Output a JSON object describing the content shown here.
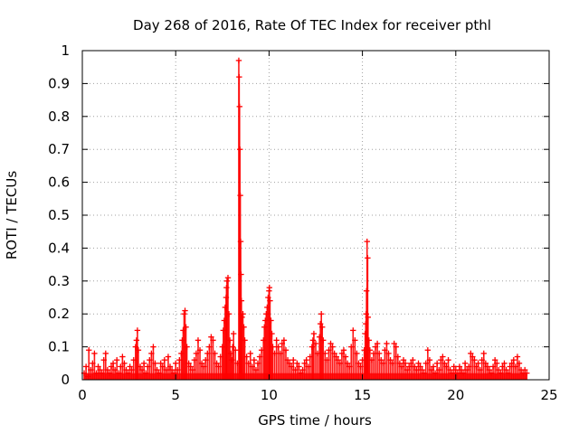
{
  "chart_data": {
    "type": "scatter",
    "title": "Day 268 of 2016, Rate Of TEC Index for receiver pthl",
    "xlabel": "GPS time / hours",
    "ylabel": "ROTI / TECUs",
    "xlim": [
      0,
      25
    ],
    "ylim": [
      0,
      1
    ],
    "x_ticks": [
      "0",
      "5",
      "10",
      "15",
      "20",
      "25"
    ],
    "y_ticks": [
      "0",
      "0.1",
      "0.2",
      "0.3",
      "0.4",
      "0.5",
      "0.6",
      "0.7",
      "0.8",
      "0.9",
      "1"
    ],
    "grid": true,
    "marker": "+",
    "color": "#ff0000",
    "series": [
      {
        "name": "ROTI",
        "points": [
          [
            0.1,
            0.02
          ],
          [
            0.2,
            0.04
          ],
          [
            0.3,
            0.01
          ],
          [
            0.35,
            0.09
          ],
          [
            0.45,
            0.03
          ],
          [
            0.55,
            0.05
          ],
          [
            0.65,
            0.08
          ],
          [
            0.75,
            0.02
          ],
          [
            0.85,
            0.04
          ],
          [
            0.95,
            0.03
          ],
          [
            1.05,
            0.02
          ],
          [
            1.15,
            0.06
          ],
          [
            1.25,
            0.08
          ],
          [
            1.35,
            0.03
          ],
          [
            1.45,
            0.02
          ],
          [
            1.55,
            0.04
          ],
          [
            1.65,
            0.05
          ],
          [
            1.75,
            0.03
          ],
          [
            1.85,
            0.06
          ],
          [
            1.95,
            0.02
          ],
          [
            2.05,
            0.04
          ],
          [
            2.15,
            0.07
          ],
          [
            2.25,
            0.05
          ],
          [
            2.35,
            0.03
          ],
          [
            2.45,
            0.02
          ],
          [
            2.55,
            0.04
          ],
          [
            2.65,
            0.03
          ],
          [
            2.75,
            0.06
          ],
          [
            2.85,
            0.1
          ],
          [
            2.9,
            0.12
          ],
          [
            2.95,
            0.15
          ],
          [
            3.0,
            0.09
          ],
          [
            3.1,
            0.04
          ],
          [
            3.2,
            0.03
          ],
          [
            3.3,
            0.05
          ],
          [
            3.4,
            0.02
          ],
          [
            3.5,
            0.04
          ],
          [
            3.6,
            0.06
          ],
          [
            3.7,
            0.08
          ],
          [
            3.8,
            0.1
          ],
          [
            3.9,
            0.05
          ],
          [
            4.0,
            0.03
          ],
          [
            4.1,
            0.02
          ],
          [
            4.2,
            0.05
          ],
          [
            4.3,
            0.04
          ],
          [
            4.4,
            0.06
          ],
          [
            4.5,
            0.03
          ],
          [
            4.6,
            0.07
          ],
          [
            4.7,
            0.04
          ],
          [
            4.8,
            0.03
          ],
          [
            4.9,
            0.02
          ],
          [
            5.0,
            0.05
          ],
          [
            5.1,
            0.03
          ],
          [
            5.2,
            0.06
          ],
          [
            5.3,
            0.08
          ],
          [
            5.35,
            0.12
          ],
          [
            5.4,
            0.15
          ],
          [
            5.45,
            0.2
          ],
          [
            5.5,
            0.21
          ],
          [
            5.55,
            0.16
          ],
          [
            5.6,
            0.1
          ],
          [
            5.7,
            0.05
          ],
          [
            5.8,
            0.04
          ],
          [
            5.9,
            0.03
          ],
          [
            6.0,
            0.06
          ],
          [
            6.1,
            0.08
          ],
          [
            6.2,
            0.12
          ],
          [
            6.3,
            0.09
          ],
          [
            6.4,
            0.05
          ],
          [
            6.5,
            0.04
          ],
          [
            6.6,
            0.06
          ],
          [
            6.7,
            0.08
          ],
          [
            6.8,
            0.1
          ],
          [
            6.9,
            0.13
          ],
          [
            7.0,
            0.12
          ],
          [
            7.1,
            0.08
          ],
          [
            7.2,
            0.05
          ],
          [
            7.3,
            0.04
          ],
          [
            7.4,
            0.07
          ],
          [
            7.5,
            0.1
          ],
          [
            7.55,
            0.15
          ],
          [
            7.6,
            0.18
          ],
          [
            7.65,
            0.22
          ],
          [
            7.7,
            0.25
          ],
          [
            7.72,
            0.28
          ],
          [
            7.75,
            0.3
          ],
          [
            7.8,
            0.31
          ],
          [
            7.85,
            0.2
          ],
          [
            7.9,
            0.12
          ],
          [
            7.95,
            0.08
          ],
          [
            8.0,
            0.06
          ],
          [
            8.05,
            0.1
          ],
          [
            8.1,
            0.14
          ],
          [
            8.2,
            0.09
          ],
          [
            8.3,
            0.05
          ],
          [
            8.38,
            0.97
          ],
          [
            8.4,
            0.92
          ],
          [
            8.42,
            0.83
          ],
          [
            8.44,
            0.7
          ],
          [
            8.46,
            0.56
          ],
          [
            8.48,
            0.42
          ],
          [
            8.5,
            0.32
          ],
          [
            8.52,
            0.24
          ],
          [
            8.55,
            0.19
          ],
          [
            8.6,
            0.2
          ],
          [
            8.65,
            0.16
          ],
          [
            8.7,
            0.12
          ],
          [
            8.8,
            0.07
          ],
          [
            8.9,
            0.05
          ],
          [
            9.0,
            0.08
          ],
          [
            9.1,
            0.04
          ],
          [
            9.2,
            0.06
          ],
          [
            9.3,
            0.03
          ],
          [
            9.4,
            0.05
          ],
          [
            9.5,
            0.07
          ],
          [
            9.6,
            0.09
          ],
          [
            9.7,
            0.12
          ],
          [
            9.75,
            0.16
          ],
          [
            9.8,
            0.18
          ],
          [
            9.85,
            0.2
          ],
          [
            9.9,
            0.22
          ],
          [
            9.95,
            0.25
          ],
          [
            10.0,
            0.27
          ],
          [
            10.02,
            0.28
          ],
          [
            10.05,
            0.24
          ],
          [
            10.1,
            0.18
          ],
          [
            10.15,
            0.14
          ],
          [
            10.2,
            0.1
          ],
          [
            10.3,
            0.08
          ],
          [
            10.4,
            0.12
          ],
          [
            10.5,
            0.1
          ],
          [
            10.6,
            0.08
          ],
          [
            10.7,
            0.11
          ],
          [
            10.8,
            0.12
          ],
          [
            10.9,
            0.09
          ],
          [
            11.0,
            0.06
          ],
          [
            11.1,
            0.05
          ],
          [
            11.2,
            0.04
          ],
          [
            11.3,
            0.06
          ],
          [
            11.4,
            0.03
          ],
          [
            11.5,
            0.05
          ],
          [
            11.6,
            0.04
          ],
          [
            11.7,
            0.02
          ],
          [
            11.8,
            0.03
          ],
          [
            11.9,
            0.05
          ],
          [
            12.0,
            0.06
          ],
          [
            12.1,
            0.04
          ],
          [
            12.2,
            0.07
          ],
          [
            12.3,
            0.1
          ],
          [
            12.35,
            0.12
          ],
          [
            12.4,
            0.14
          ],
          [
            12.5,
            0.11
          ],
          [
            12.6,
            0.08
          ],
          [
            12.7,
            0.13
          ],
          [
            12.75,
            0.17
          ],
          [
            12.8,
            0.2
          ],
          [
            12.85,
            0.16
          ],
          [
            12.9,
            0.12
          ],
          [
            13.0,
            0.08
          ],
          [
            13.1,
            0.06
          ],
          [
            13.2,
            0.09
          ],
          [
            13.3,
            0.11
          ],
          [
            13.4,
            0.1
          ],
          [
            13.5,
            0.08
          ],
          [
            13.6,
            0.07
          ],
          [
            13.7,
            0.06
          ],
          [
            13.8,
            0.05
          ],
          [
            13.9,
            0.08
          ],
          [
            14.0,
            0.09
          ],
          [
            14.1,
            0.07
          ],
          [
            14.2,
            0.05
          ],
          [
            14.3,
            0.04
          ],
          [
            14.4,
            0.1
          ],
          [
            14.5,
            0.15
          ],
          [
            14.6,
            0.12
          ],
          [
            14.7,
            0.08
          ],
          [
            14.8,
            0.05
          ],
          [
            14.9,
            0.04
          ],
          [
            15.0,
            0.06
          ],
          [
            15.1,
            0.09
          ],
          [
            15.15,
            0.14
          ],
          [
            15.18,
            0.17
          ],
          [
            15.2,
            0.2
          ],
          [
            15.22,
            0.27
          ],
          [
            15.25,
            0.42
          ],
          [
            15.28,
            0.37
          ],
          [
            15.3,
            0.19
          ],
          [
            15.35,
            0.12
          ],
          [
            15.4,
            0.09
          ],
          [
            15.5,
            0.06
          ],
          [
            15.6,
            0.08
          ],
          [
            15.7,
            0.1
          ],
          [
            15.8,
            0.11
          ],
          [
            15.9,
            0.08
          ],
          [
            16.0,
            0.06
          ],
          [
            16.1,
            0.05
          ],
          [
            16.2,
            0.09
          ],
          [
            16.3,
            0.11
          ],
          [
            16.4,
            0.08
          ],
          [
            16.5,
            0.06
          ],
          [
            16.6,
            0.05
          ],
          [
            16.7,
            0.11
          ],
          [
            16.8,
            0.1
          ],
          [
            16.9,
            0.07
          ],
          [
            17.0,
            0.05
          ],
          [
            17.1,
            0.04
          ],
          [
            17.2,
            0.06
          ],
          [
            17.3,
            0.05
          ],
          [
            17.4,
            0.03
          ],
          [
            17.5,
            0.04
          ],
          [
            17.6,
            0.05
          ],
          [
            17.7,
            0.06
          ],
          [
            17.8,
            0.04
          ],
          [
            17.9,
            0.03
          ],
          [
            18.0,
            0.05
          ],
          [
            18.1,
            0.04
          ],
          [
            18.2,
            0.03
          ],
          [
            18.3,
            0.02
          ],
          [
            18.4,
            0.05
          ],
          [
            18.5,
            0.09
          ],
          [
            18.6,
            0.06
          ],
          [
            18.7,
            0.03
          ],
          [
            18.8,
            0.04
          ],
          [
            18.9,
            0.02
          ],
          [
            19.0,
            0.05
          ],
          [
            19.1,
            0.03
          ],
          [
            19.2,
            0.06
          ],
          [
            19.3,
            0.07
          ],
          [
            19.4,
            0.05
          ],
          [
            19.5,
            0.04
          ],
          [
            19.6,
            0.06
          ],
          [
            19.7,
            0.03
          ],
          [
            19.8,
            0.02
          ],
          [
            19.9,
            0.04
          ],
          [
            20.0,
            0.03
          ],
          [
            20.1,
            0.02
          ],
          [
            20.2,
            0.04
          ],
          [
            20.3,
            0.03
          ],
          [
            20.4,
            0.02
          ],
          [
            20.5,
            0.05
          ],
          [
            20.6,
            0.03
          ],
          [
            20.7,
            0.04
          ],
          [
            20.8,
            0.08
          ],
          [
            20.9,
            0.07
          ],
          [
            21.0,
            0.06
          ],
          [
            21.1,
            0.04
          ],
          [
            21.2,
            0.05
          ],
          [
            21.3,
            0.03
          ],
          [
            21.4,
            0.06
          ],
          [
            21.5,
            0.08
          ],
          [
            21.6,
            0.05
          ],
          [
            21.7,
            0.04
          ],
          [
            21.8,
            0.03
          ],
          [
            21.9,
            0.02
          ],
          [
            22.0,
            0.04
          ],
          [
            22.1,
            0.06
          ],
          [
            22.2,
            0.05
          ],
          [
            22.3,
            0.03
          ],
          [
            22.4,
            0.02
          ],
          [
            22.5,
            0.04
          ],
          [
            22.6,
            0.05
          ],
          [
            22.7,
            0.03
          ],
          [
            22.8,
            0.02
          ],
          [
            22.9,
            0.04
          ],
          [
            23.0,
            0.05
          ],
          [
            23.1,
            0.06
          ],
          [
            23.2,
            0.04
          ],
          [
            23.3,
            0.07
          ],
          [
            23.4,
            0.05
          ],
          [
            23.5,
            0.03
          ],
          [
            23.6,
            0.02
          ],
          [
            23.7,
            0.03
          ],
          [
            23.8,
            0.02
          ]
        ]
      }
    ]
  }
}
